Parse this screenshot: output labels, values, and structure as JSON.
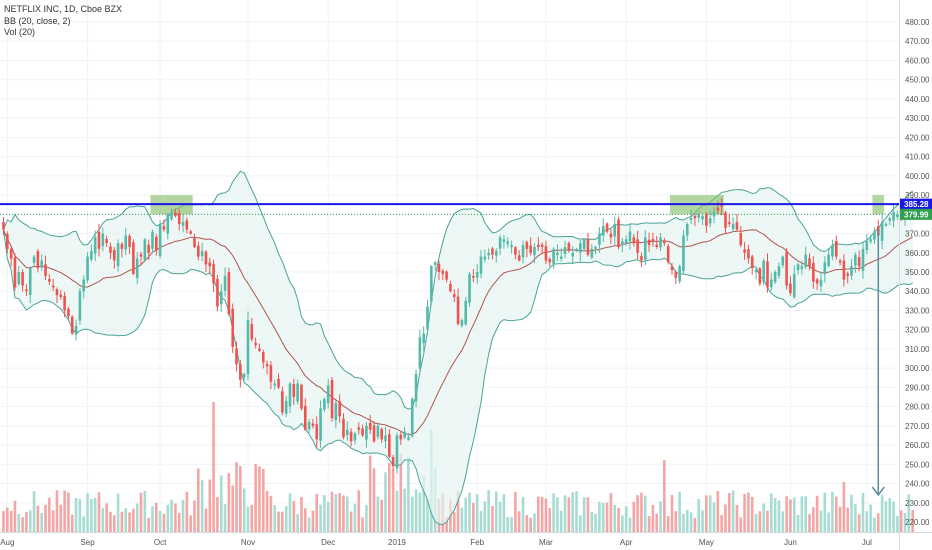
{
  "legend": {
    "symbol_line": "NETFLIX INC, 1D, Cboe BZX",
    "bb_line": "BB (20, close, 2)",
    "vol_line": "Vol (20)"
  },
  "colors": {
    "up": "#53b9a9",
    "down": "#ef5350",
    "vol_up": "#a7dcd3",
    "vol_down": "#f4a5a4",
    "bb_band": "#4aa396",
    "bb_fill": "#e6f4f1",
    "bb_basis": "#b0554f",
    "resistance": "#1c18e6",
    "close_line": "#2e9e4f",
    "box_fill": "#8cc06d",
    "arrow": "#5b8e9c"
  },
  "chart_data": {
    "type": "candlestick",
    "ylim": [
      215,
      485
    ],
    "y_ticks": [
      "220.00",
      "230.00",
      "240.00",
      "250.00",
      "260.00",
      "270.00",
      "280.00",
      "290.00",
      "300.00",
      "310.00",
      "320.00",
      "330.00",
      "340.00",
      "350.00",
      "360.00",
      "370.00",
      "380.00",
      "390.00",
      "400.00",
      "410.00",
      "420.00",
      "430.00",
      "440.00",
      "450.00",
      "460.00",
      "470.00",
      "480.00"
    ],
    "x_labels": [
      {
        "label": "Aug",
        "index": 1
      },
      {
        "label": "Sep",
        "index": 22
      },
      {
        "label": "Oct",
        "index": 41
      },
      {
        "label": "Nov",
        "index": 64
      },
      {
        "label": "Dec",
        "index": 85
      },
      {
        "label": "2019",
        "index": 103
      },
      {
        "label": "Feb",
        "index": 124
      },
      {
        "label": "Mar",
        "index": 142
      },
      {
        "label": "Apr",
        "index": 163
      },
      {
        "label": "May",
        "index": 184
      },
      {
        "label": "Jun",
        "index": 206
      },
      {
        "label": "Jul",
        "index": 226
      }
    ],
    "closes": [
      372,
      362,
      357,
      342,
      350,
      343,
      340,
      352,
      358,
      352,
      356,
      348,
      345,
      342,
      338,
      337,
      330,
      327,
      318,
      322,
      340,
      346,
      358,
      361,
      368,
      362,
      370,
      365,
      360,
      356,
      365,
      362,
      369,
      363,
      349,
      357,
      358,
      367,
      360,
      371,
      361,
      375,
      372,
      380,
      381,
      379,
      375,
      376,
      372,
      370,
      363,
      358,
      361,
      354,
      353,
      344,
      332,
      340,
      348,
      328,
      311,
      302,
      294,
      297,
      325,
      315,
      312,
      309,
      303,
      301,
      293,
      292,
      290,
      277,
      283,
      292,
      285,
      292,
      279,
      268,
      272,
      270,
      263,
      279,
      284,
      291,
      274,
      282,
      275,
      264,
      268,
      262,
      266,
      268,
      265,
      270,
      268,
      262,
      270,
      263,
      265,
      254,
      249,
      265,
      263,
      267,
      264,
      284,
      297,
      316,
      318,
      332,
      353,
      355,
      350,
      349,
      346,
      340,
      337,
      323,
      325,
      335,
      349,
      347,
      350,
      358,
      358,
      360,
      359,
      361,
      368,
      367,
      366,
      364,
      359,
      356,
      364,
      362,
      360,
      363,
      363,
      363,
      356,
      355,
      362,
      360,
      358,
      363,
      361,
      360,
      362,
      365,
      367,
      359,
      362,
      363,
      370,
      374,
      371,
      368,
      375,
      363,
      366,
      367,
      371,
      365,
      360,
      356,
      368,
      364,
      366,
      363,
      368,
      365,
      355,
      351,
      347,
      353,
      369,
      375,
      378,
      378,
      380,
      379,
      374,
      378,
      381,
      382,
      384,
      373,
      375,
      375,
      372,
      364,
      360,
      357,
      352,
      351,
      344,
      356,
      342,
      346,
      350,
      353,
      358,
      343,
      339,
      349,
      354,
      353,
      359,
      353,
      345,
      344,
      346,
      355,
      359,
      364,
      358,
      355,
      346,
      348,
      353,
      359,
      353,
      362,
      366,
      367,
      371,
      369,
      376,
      375,
      378,
      381,
      380,
      379,
      380,
      385,
      380
    ]
  },
  "levels": {
    "resistance_value": 385.28,
    "resistance_label": "385.28",
    "close_value": 379.99,
    "close_label": "379.99"
  }
}
